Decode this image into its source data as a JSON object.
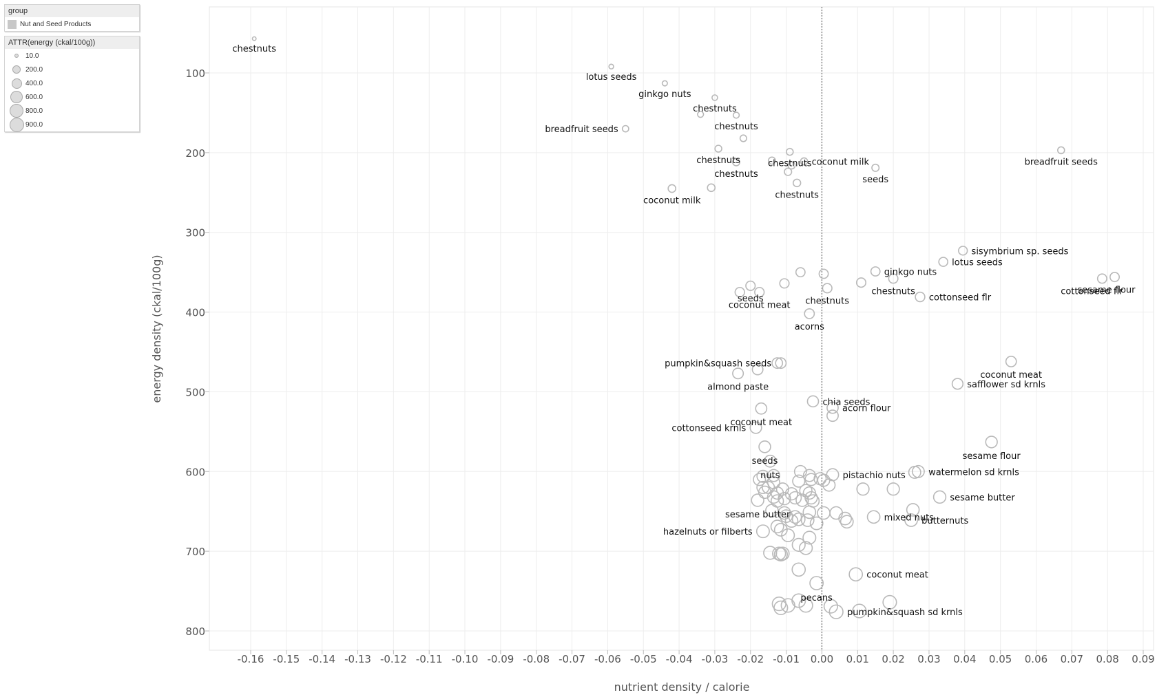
{
  "legend": {
    "group_title": "group",
    "group_item": "Nut and Seed Products",
    "size_title": "ATTR(energy (ckal/100g))",
    "size_items": [
      "10.0",
      "200.0",
      "400.0",
      "600.0",
      "800.0",
      "900.0"
    ]
  },
  "colors": {
    "mark_stroke": "#b9b9b9",
    "grid": "#ededed",
    "axis_text": "#555555",
    "label_text": "#111111"
  },
  "chart_data": {
    "type": "scatter",
    "xlabel": "nutrient density / calorie",
    "ylabel": "energy density (ckal/100g)",
    "xlim": [
      -0.17,
      0.095
    ],
    "ylim": [
      20,
      820
    ],
    "y_reversed": true,
    "x_ticks": [
      "-0.16",
      "-0.15",
      "-0.14",
      "-0.13",
      "-0.12",
      "-0.11",
      "-0.10",
      "-0.09",
      "-0.08",
      "-0.07",
      "-0.06",
      "-0.05",
      "-0.04",
      "-0.03",
      "-0.02",
      "-0.01",
      "0.00",
      "0.01",
      "0.02",
      "0.03",
      "0.04",
      "0.05",
      "0.06",
      "0.07",
      "0.08",
      "0.09"
    ],
    "y_ticks": [
      100,
      200,
      300,
      400,
      500,
      600,
      700,
      800
    ],
    "reference_line_x": 0,
    "points": [
      {
        "x": -0.159,
        "y": 57
      },
      {
        "x": -0.059,
        "y": 92
      },
      {
        "x": -0.044,
        "y": 113
      },
      {
        "x": -0.03,
        "y": 131
      },
      {
        "x": -0.034,
        "y": 152
      },
      {
        "x": -0.024,
        "y": 153
      },
      {
        "x": -0.055,
        "y": 170
      },
      {
        "x": -0.022,
        "y": 182
      },
      {
        "x": -0.029,
        "y": 195
      },
      {
        "x": -0.009,
        "y": 199
      },
      {
        "x": 0.067,
        "y": 197
      },
      {
        "x": -0.014,
        "y": 210
      },
      {
        "x": -0.024,
        "y": 212
      },
      {
        "x": -0.005,
        "y": 211
      },
      {
        "x": -0.0085,
        "y": 216
      },
      {
        "x": 0.015,
        "y": 219
      },
      {
        "x": -0.0095,
        "y": 224
      },
      {
        "x": -0.007,
        "y": 238
      },
      {
        "x": -0.042,
        "y": 245
      },
      {
        "x": -0.031,
        "y": 244
      },
      {
        "x": 0.0395,
        "y": 323
      },
      {
        "x": 0.034,
        "y": 337
      },
      {
        "x": 0.015,
        "y": 349
      },
      {
        "x": -0.006,
        "y": 350
      },
      {
        "x": 0.0005,
        "y": 352
      },
      {
        "x": 0.02,
        "y": 358
      },
      {
        "x": 0.0785,
        "y": 358
      },
      {
        "x": 0.082,
        "y": 356
      },
      {
        "x": -0.0105,
        "y": 364
      },
      {
        "x": 0.011,
        "y": 363
      },
      {
        "x": -0.02,
        "y": 367
      },
      {
        "x": 0.0015,
        "y": 370
      },
      {
        "x": -0.023,
        "y": 375
      },
      {
        "x": -0.0175,
        "y": 375
      },
      {
        "x": 0.0275,
        "y": 381
      },
      {
        "x": -0.0035,
        "y": 402
      },
      {
        "x": -0.0125,
        "y": 464
      },
      {
        "x": -0.0115,
        "y": 464
      },
      {
        "x": 0.053,
        "y": 462
      },
      {
        "x": -0.018,
        "y": 472
      },
      {
        "x": -0.0235,
        "y": 477
      },
      {
        "x": 0.038,
        "y": 490
      },
      {
        "x": -0.0025,
        "y": 512
      },
      {
        "x": 0.003,
        "y": 520
      },
      {
        "x": -0.017,
        "y": 521
      },
      {
        "x": 0.003,
        "y": 530
      },
      {
        "x": 0.0475,
        "y": 563
      },
      {
        "x": -0.0185,
        "y": 545
      },
      {
        "x": -0.016,
        "y": 569
      },
      {
        "x": -0.0145,
        "y": 587
      },
      {
        "x": -0.006,
        "y": 600
      },
      {
        "x": 0.026,
        "y": 601
      },
      {
        "x": 0.027,
        "y": 600
      },
      {
        "x": -0.0165,
        "y": 606
      },
      {
        "x": -0.0135,
        "y": 605
      },
      {
        "x": -0.0035,
        "y": 605
      },
      {
        "x": 0.003,
        "y": 604
      },
      {
        "x": -0.0175,
        "y": 610
      },
      {
        "x": -0.003,
        "y": 610
      },
      {
        "x": -0.0005,
        "y": 609
      },
      {
        "x": -0.0135,
        "y": 614
      },
      {
        "x": -0.0065,
        "y": 612
      },
      {
        "x": 0.0005,
        "y": 611
      },
      {
        "x": -0.015,
        "y": 620
      },
      {
        "x": -0.0165,
        "y": 620
      },
      {
        "x": 0.002,
        "y": 617
      },
      {
        "x": -0.011,
        "y": 622
      },
      {
        "x": -0.0045,
        "y": 624
      },
      {
        "x": -0.016,
        "y": 626
      },
      {
        "x": -0.0125,
        "y": 627
      },
      {
        "x": -0.0085,
        "y": 628
      },
      {
        "x": -0.0035,
        "y": 627
      },
      {
        "x": 0.0115,
        "y": 622
      },
      {
        "x": 0.02,
        "y": 622
      },
      {
        "x": -0.0135,
        "y": 632
      },
      {
        "x": -0.0105,
        "y": 634
      },
      {
        "x": -0.0075,
        "y": 633
      },
      {
        "x": -0.003,
        "y": 633
      },
      {
        "x": 0.033,
        "y": 632
      },
      {
        "x": -0.018,
        "y": 636
      },
      {
        "x": -0.0125,
        "y": 637
      },
      {
        "x": -0.0055,
        "y": 636
      },
      {
        "x": -0.0025,
        "y": 637
      },
      {
        "x": 0.0255,
        "y": 648
      },
      {
        "x": -0.014,
        "y": 649
      },
      {
        "x": -0.0105,
        "y": 652
      },
      {
        "x": -0.0035,
        "y": 651
      },
      {
        "x": 0.0005,
        "y": 652
      },
      {
        "x": 0.004,
        "y": 652
      },
      {
        "x": -0.01,
        "y": 656
      },
      {
        "x": -0.0075,
        "y": 657
      },
      {
        "x": -0.0065,
        "y": 660
      },
      {
        "x": 0.0065,
        "y": 659
      },
      {
        "x": 0.0145,
        "y": 657
      },
      {
        "x": -0.0085,
        "y": 662
      },
      {
        "x": -0.004,
        "y": 661
      },
      {
        "x": 0.007,
        "y": 663
      },
      {
        "x": 0.025,
        "y": 661
      },
      {
        "x": -0.0015,
        "y": 665
      },
      {
        "x": -0.0125,
        "y": 669
      },
      {
        "x": -0.0115,
        "y": 673
      },
      {
        "x": -0.0165,
        "y": 675
      },
      {
        "x": -0.0095,
        "y": 680
      },
      {
        "x": -0.0035,
        "y": 683
      },
      {
        "x": -0.0065,
        "y": 692
      },
      {
        "x": -0.0045,
        "y": 696
      },
      {
        "x": -0.0145,
        "y": 702
      },
      {
        "x": -0.012,
        "y": 703
      },
      {
        "x": -0.0115,
        "y": 704
      },
      {
        "x": -0.011,
        "y": 703
      },
      {
        "x": -0.0065,
        "y": 723
      },
      {
        "x": 0.0095,
        "y": 729
      },
      {
        "x": -0.0015,
        "y": 740
      },
      {
        "x": -0.0065,
        "y": 762
      },
      {
        "x": 0.0025,
        "y": 769
      },
      {
        "x": 0.019,
        "y": 764
      },
      {
        "x": -0.012,
        "y": 766
      },
      {
        "x": -0.0115,
        "y": 771
      },
      {
        "x": -0.0095,
        "y": 768
      },
      {
        "x": -0.0045,
        "y": 768
      },
      {
        "x": 0.004,
        "y": 776
      },
      {
        "x": 0.0105,
        "y": 775
      }
    ],
    "labels": [
      {
        "text": "chestnuts",
        "x": -0.159,
        "y": 57
      },
      {
        "text": "lotus seeds",
        "x": -0.059,
        "y": 92
      },
      {
        "text": "ginkgo nuts",
        "x": -0.044,
        "y": 113
      },
      {
        "text": "chestnuts",
        "x": -0.03,
        "y": 131
      },
      {
        "text": "chestnuts",
        "x": -0.024,
        "y": 153
      },
      {
        "text": "breadfruit seeds",
        "x": -0.055,
        "y": 170
      },
      {
        "text": "chestnuts",
        "x": -0.009,
        "y": 199
      },
      {
        "text": "chestnuts",
        "x": -0.029,
        "y": 195
      },
      {
        "text": "coconut milk",
        "x": -0.005,
        "y": 211
      },
      {
        "text": "breadfruit seeds",
        "x": 0.067,
        "y": 197
      },
      {
        "text": "chestnuts",
        "x": -0.024,
        "y": 212
      },
      {
        "text": "seeds",
        "x": 0.015,
        "y": 219
      },
      {
        "text": "chestnuts",
        "x": -0.007,
        "y": 238
      },
      {
        "text": "coconut milk",
        "x": -0.042,
        "y": 245
      },
      {
        "text": "sisymbrium sp. seeds",
        "x": 0.0395,
        "y": 323
      },
      {
        "text": "ginkgo nuts",
        "x": 0.015,
        "y": 349
      },
      {
        "text": "cottonseed flr",
        "x": 0.0785,
        "y": 358
      },
      {
        "text": "seeds",
        "x": -0.02,
        "y": 367
      },
      {
        "text": "lotus seeds",
        "x": 0.034,
        "y": 337
      },
      {
        "text": "chestnuts",
        "x": 0.02,
        "y": 358
      },
      {
        "text": "sesame flour",
        "x": 0.082,
        "y": 356
      },
      {
        "text": "chestnuts",
        "x": 0.0015,
        "y": 370
      },
      {
        "text": "coconut meat",
        "x": -0.0175,
        "y": 375
      },
      {
        "text": "cottonseed flr",
        "x": 0.0275,
        "y": 381
      },
      {
        "text": "acorns",
        "x": -0.0035,
        "y": 402
      },
      {
        "text": "pumpkin&squash seeds",
        "x": -0.0115,
        "y": 464
      },
      {
        "text": "coconut meat",
        "x": 0.053,
        "y": 462
      },
      {
        "text": "almond paste",
        "x": -0.0235,
        "y": 477
      },
      {
        "text": "chia seeds",
        "x": -0.0025,
        "y": 512
      },
      {
        "text": "safflower sd krnls",
        "x": 0.038,
        "y": 490
      },
      {
        "text": "acorn flour",
        "x": 0.003,
        "y": 520
      },
      {
        "text": "coconut meat",
        "x": -0.017,
        "y": 521
      },
      {
        "text": "cottonseed krnls",
        "x": -0.0185,
        "y": 545
      },
      {
        "text": "seeds",
        "x": -0.016,
        "y": 569
      },
      {
        "text": "sesame flour",
        "x": 0.0475,
        "y": 563
      },
      {
        "text": "nuts",
        "x": -0.0145,
        "y": 587
      },
      {
        "text": "pistachio nuts",
        "x": 0.003,
        "y": 604
      },
      {
        "text": "watermelon sd krnls",
        "x": 0.027,
        "y": 600
      },
      {
        "text": "sesame butter",
        "x": -0.018,
        "y": 636
      },
      {
        "text": "sesame butter",
        "x": 0.033,
        "y": 632
      },
      {
        "text": "mixed nuts",
        "x": 0.0145,
        "y": 657
      },
      {
        "text": "hazelnuts or filberts",
        "x": -0.0165,
        "y": 675
      },
      {
        "text": "butternuts",
        "x": 0.025,
        "y": 661
      },
      {
        "text": "pecans",
        "x": -0.0015,
        "y": 740
      },
      {
        "text": "coconut meat",
        "x": 0.0095,
        "y": 729
      },
      {
        "text": "pumpkin&squash sd krnls",
        "x": 0.004,
        "y": 776
      }
    ]
  }
}
